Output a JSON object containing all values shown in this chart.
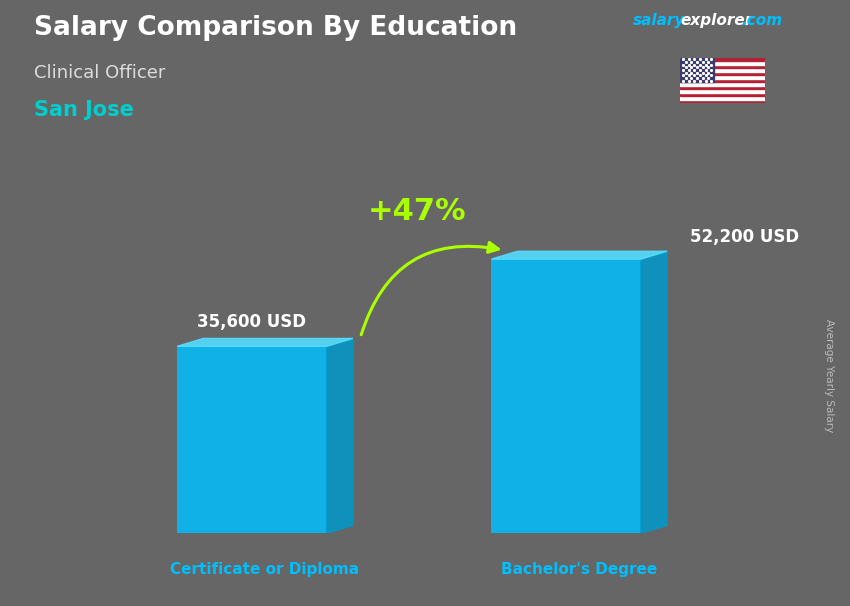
{
  "title": "Salary Comparison By Education",
  "subtitle": "Clinical Officer",
  "location": "San Jose",
  "ylabel": "Average Yearly Salary",
  "categories": [
    "Certificate or Diploma",
    "Bachelor's Degree"
  ],
  "values": [
    35600,
    52200
  ],
  "value_labels": [
    "35,600 USD",
    "52,200 USD"
  ],
  "bar_color_front": "#00BFFF",
  "bar_color_side": "#0099CC",
  "bar_color_top": "#55DDFF",
  "pct_label": "+47%",
  "pct_color": "#AAFF00",
  "title_color": "#FFFFFF",
  "subtitle_color": "#DDDDDD",
  "location_color": "#00CFCF",
  "watermark_salary_color": "#00BFFF",
  "watermark_explorer_color": "#FFFFFF",
  "watermark_com_color": "#00BFFF",
  "cat_label_color": "#00BFFF",
  "value_label_color": "#FFFFFF",
  "background_color": "#666666",
  "figsize": [
    8.5,
    6.06
  ],
  "dpi": 100
}
